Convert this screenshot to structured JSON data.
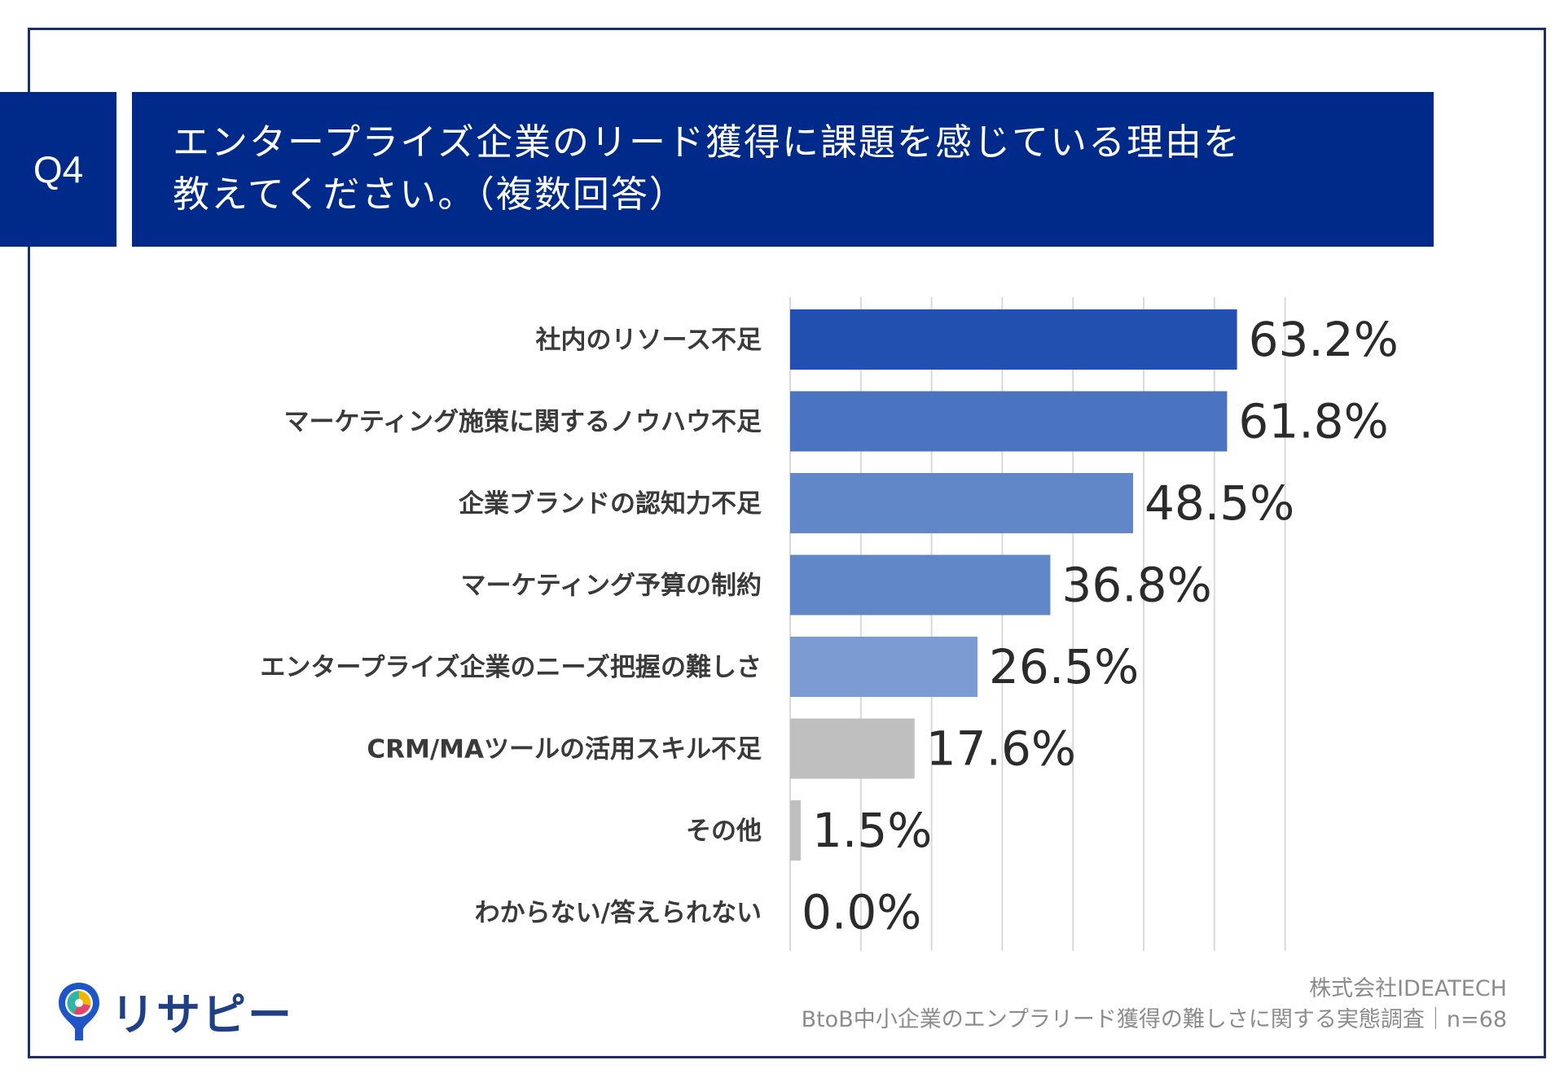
{
  "header": {
    "question_number": "Q4",
    "question_line1": "エンタープライズ企業のリード獲得に課題を感じている理由を",
    "question_line2": "教えてください。（複数回答）"
  },
  "chart_data": {
    "type": "bar",
    "orientation": "horizontal",
    "categories": [
      "社内のリソース不足",
      "マーケティング施策に関するノウハウ不足",
      "企業ブランドの認知力不足",
      "マーケティング予算の制約",
      "エンタープライズ企業のニーズ把握の難しさ",
      "CRM/MAツールの活用スキル不足",
      "その他",
      "わからない/答えられない"
    ],
    "values": [
      63.2,
      61.8,
      48.5,
      36.8,
      26.5,
      17.6,
      1.5,
      0.0
    ],
    "value_labels": [
      "63.2%",
      "61.8%",
      "48.5%",
      "36.8%",
      "26.5%",
      "17.6%",
      "1.5%",
      "0.0%"
    ],
    "colors": [
      "#2150b0",
      "#4a73c1",
      "#6187c9",
      "#6187c9",
      "#7c9bd3",
      "#bfbfbf",
      "#bfbfbf",
      "#bfbfbf"
    ],
    "xlim": [
      0,
      70
    ],
    "grid": true,
    "grid_step": 10,
    "title": "",
    "xlabel": "",
    "ylabel": ""
  },
  "footer": {
    "logo_text": "リサピー",
    "company": "株式会社IDEATECH",
    "survey": "BtoB中小企業のエンプラリード獲得の難しさに関する実態調査｜n=68"
  }
}
